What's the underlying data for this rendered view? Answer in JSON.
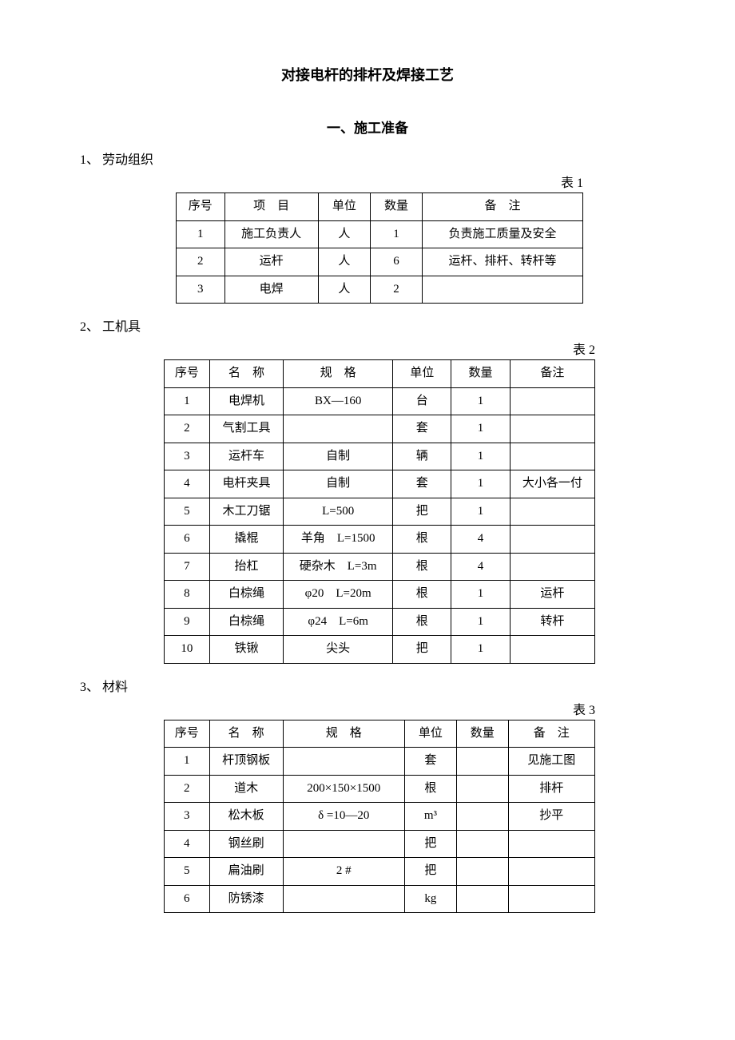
{
  "title": "对接电杆的排杆及焊接工艺",
  "section1": "一、施工准备",
  "subs": {
    "s1": "1、 劳动组织",
    "s2": "2、 工机具",
    "s3": "3、 材料"
  },
  "captions": {
    "t1": "表 1",
    "t2": "表 2",
    "t3": "表 3"
  },
  "table1": {
    "headers": [
      "序号",
      "项　目",
      "单位",
      "数量",
      "备　注"
    ],
    "rows": [
      [
        "1",
        "施工负责人",
        "人",
        "1",
        "负责施工质量及安全"
      ],
      [
        "2",
        "运杆",
        "人",
        "6",
        "运杆、排杆、转杆等"
      ],
      [
        "3",
        "电焊",
        "人",
        "2",
        ""
      ]
    ]
  },
  "table2": {
    "headers": [
      "序号",
      "名　称",
      "规　格",
      "单位",
      "数量",
      "备注"
    ],
    "rows": [
      [
        "1",
        "电焊机",
        "BX—160",
        "台",
        "1",
        ""
      ],
      [
        "2",
        "气割工具",
        "",
        "套",
        "1",
        ""
      ],
      [
        "3",
        "运杆车",
        "自制",
        "辆",
        "1",
        ""
      ],
      [
        "4",
        "电杆夹具",
        "自制",
        "套",
        "1",
        "大小各一付"
      ],
      [
        "5",
        "木工刀锯",
        "L=500",
        "把",
        "1",
        ""
      ],
      [
        "6",
        "撬棍",
        "羊角　L=1500",
        "根",
        "4",
        ""
      ],
      [
        "7",
        "抬杠",
        "硬杂木　L=3m",
        "根",
        "4",
        ""
      ],
      [
        "8",
        "白棕绳",
        "φ20　L=20m",
        "根",
        "1",
        "运杆"
      ],
      [
        "9",
        "白棕绳",
        "φ24　L=6m",
        "根",
        "1",
        "转杆"
      ],
      [
        "10",
        "铁锹",
        "尖头",
        "把",
        "1",
        ""
      ]
    ]
  },
  "table3": {
    "headers": [
      "序号",
      "名　称",
      "规　格",
      "单位",
      "数量",
      "备　注"
    ],
    "rows": [
      [
        "1",
        "杆顶钢板",
        "",
        "套",
        "",
        "见施工图"
      ],
      [
        "2",
        "道木",
        "200×150×1500",
        "根",
        "",
        "排杆"
      ],
      [
        "3",
        "松木板",
        "δ =10—20",
        "m³",
        "",
        "抄平"
      ],
      [
        "4",
        "钢丝刷",
        "",
        "把",
        "",
        ""
      ],
      [
        "5",
        "扁油刷",
        "2 #",
        "把",
        "",
        ""
      ],
      [
        "6",
        "防锈漆",
        "",
        "kg",
        "",
        ""
      ]
    ]
  }
}
